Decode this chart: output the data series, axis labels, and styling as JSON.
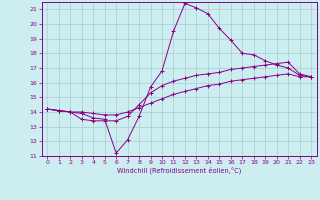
{
  "xlabel": "Windchill (Refroidissement éolien,°C)",
  "bg_color": "#cceef0",
  "line_color": "#880088",
  "xlim": [
    -0.5,
    23.5
  ],
  "ylim": [
    11,
    21.5
  ],
  "xticks": [
    0,
    1,
    2,
    3,
    4,
    5,
    6,
    7,
    8,
    9,
    10,
    11,
    12,
    13,
    14,
    15,
    16,
    17,
    18,
    19,
    20,
    21,
    22,
    23
  ],
  "yticks": [
    11,
    12,
    13,
    14,
    15,
    16,
    17,
    18,
    19,
    20,
    21
  ],
  "grid_color": "#aacccc",
  "curve1_x": [
    0,
    1,
    2,
    3,
    4,
    5,
    6,
    7,
    8,
    9,
    10,
    11,
    12,
    13,
    14,
    15,
    16,
    17,
    18,
    19,
    20,
    21,
    22,
    23
  ],
  "curve1_y": [
    14.2,
    14.1,
    14.0,
    13.9,
    13.6,
    13.5,
    11.2,
    12.1,
    13.7,
    15.7,
    16.8,
    19.5,
    21.4,
    21.1,
    20.7,
    19.7,
    18.9,
    18.0,
    17.9,
    17.5,
    17.2,
    17.0,
    16.5,
    16.4
  ],
  "curve2_x": [
    0,
    1,
    2,
    3,
    4,
    5,
    6,
    7,
    8,
    9,
    10,
    11,
    12,
    13,
    14,
    15,
    16,
    17,
    18,
    19,
    20,
    21,
    22,
    23
  ],
  "curve2_y": [
    14.2,
    14.1,
    14.0,
    13.5,
    13.4,
    13.4,
    13.4,
    13.7,
    14.5,
    15.3,
    15.8,
    16.1,
    16.3,
    16.5,
    16.6,
    16.7,
    16.9,
    17.0,
    17.1,
    17.2,
    17.3,
    17.4,
    16.6,
    16.4
  ],
  "curve3_x": [
    0,
    1,
    2,
    3,
    4,
    5,
    6,
    7,
    8,
    9,
    10,
    11,
    12,
    13,
    14,
    15,
    16,
    17,
    18,
    19,
    20,
    21,
    22,
    23
  ],
  "curve3_y": [
    14.2,
    14.1,
    14.0,
    14.0,
    13.9,
    13.8,
    13.8,
    14.0,
    14.3,
    14.6,
    14.9,
    15.2,
    15.4,
    15.6,
    15.8,
    15.9,
    16.1,
    16.2,
    16.3,
    16.4,
    16.5,
    16.6,
    16.4,
    16.4
  ]
}
